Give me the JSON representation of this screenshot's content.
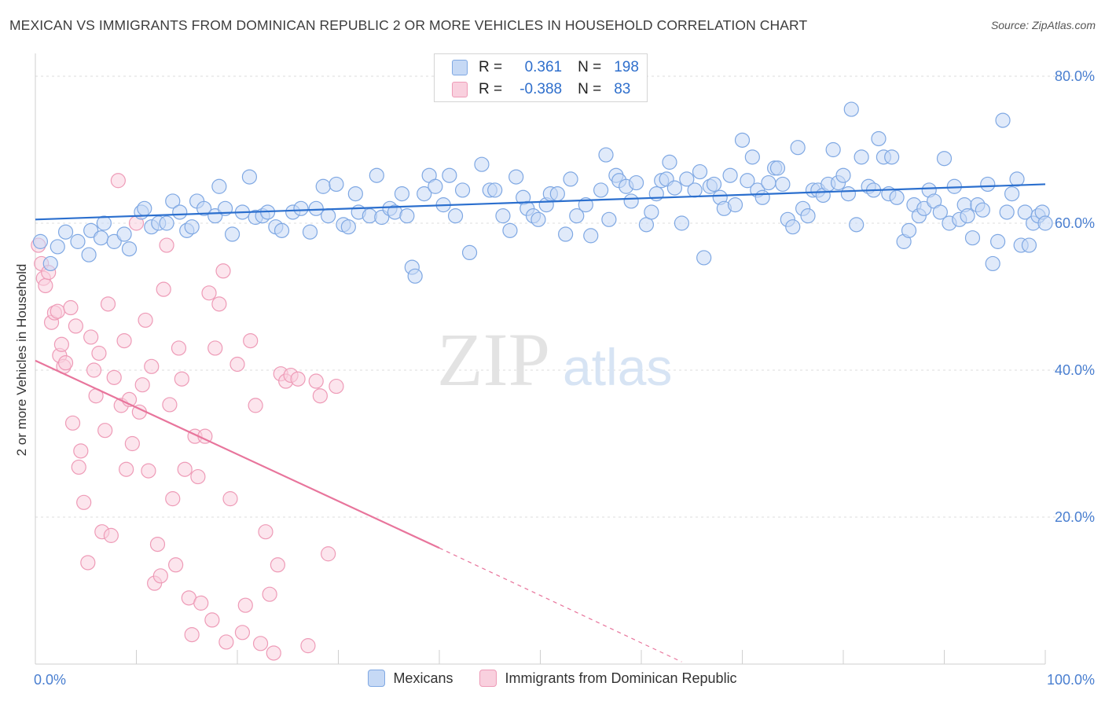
{
  "title": "MEXICAN VS IMMIGRANTS FROM DOMINICAN REPUBLIC 2 OR MORE VEHICLES IN HOUSEHOLD CORRELATION CHART",
  "source": "Source: ZipAtlas.com",
  "watermark": {
    "zip": "ZIP",
    "atlas": "atlas"
  },
  "colors": {
    "blue_fill": "#c6d9f5",
    "blue_stroke": "#7fa8e3",
    "blue_line": "#2b6fce",
    "pink_fill": "#f9d0de",
    "pink_stroke": "#ee9bb7",
    "pink_line": "#e8759c",
    "axis_text": "#4a7fd0",
    "grid": "#dcdcdc"
  },
  "stats": [
    {
      "label_r": "R =",
      "r": "0.361",
      "label_n": "N =",
      "n": "198",
      "color": "blue"
    },
    {
      "label_r": "R =",
      "r": "-0.388",
      "label_n": "N =",
      "n": "83",
      "color": "pink"
    }
  ],
  "legend": [
    {
      "label": "Mexicans",
      "color": "blue"
    },
    {
      "label": "Immigrants from Dominican Republic",
      "color": "pink"
    }
  ],
  "chart_data": {
    "type": "scatter",
    "title": "MEXICAN VS IMMIGRANTS FROM DOMINICAN REPUBLIC 2 OR MORE VEHICLES IN HOUSEHOLD CORRELATION CHART",
    "xlabel": "",
    "ylabel": "2 or more Vehicles in Household",
    "xlim": [
      0,
      100
    ],
    "ylim": [
      0,
      80
    ],
    "x_tick_labels": [
      "0.0%",
      "100.0%"
    ],
    "y_tick_labels": [
      "20.0%",
      "40.0%",
      "60.0%",
      "80.0%"
    ],
    "y_ticks": [
      20,
      40,
      60,
      80
    ],
    "grid": true,
    "legend_position": "bottom",
    "series": [
      {
        "name": "Mexicans",
        "color": "blue",
        "trend": {
          "x": [
            0,
            100
          ],
          "y": [
            60.5,
            65.3
          ]
        },
        "points": [
          [
            0.5,
            57.5
          ],
          [
            1.5,
            54.5
          ],
          [
            2.2,
            56.8
          ],
          [
            3.0,
            58.8
          ],
          [
            4.2,
            57.5
          ],
          [
            5.5,
            59.0
          ],
          [
            5.3,
            55.7
          ],
          [
            6.5,
            58.0
          ],
          [
            6.8,
            60.0
          ],
          [
            7.8,
            57.5
          ],
          [
            8.8,
            58.5
          ],
          [
            9.3,
            56.5
          ],
          [
            10.5,
            61.5
          ],
          [
            10.8,
            62.0
          ],
          [
            11.5,
            59.5
          ],
          [
            12.2,
            60.0
          ],
          [
            13.0,
            60.0
          ],
          [
            13.6,
            63.0
          ],
          [
            14.3,
            61.5
          ],
          [
            15.0,
            59.0
          ],
          [
            15.5,
            59.5
          ],
          [
            16.0,
            63.0
          ],
          [
            16.7,
            62.0
          ],
          [
            17.8,
            61.0
          ],
          [
            18.2,
            65.0
          ],
          [
            18.8,
            62.0
          ],
          [
            19.5,
            58.5
          ],
          [
            20.5,
            61.5
          ],
          [
            21.2,
            66.3
          ],
          [
            21.8,
            60.8
          ],
          [
            22.5,
            61.0
          ],
          [
            23.0,
            61.5
          ],
          [
            23.8,
            59.5
          ],
          [
            24.4,
            59.0
          ],
          [
            25.5,
            61.5
          ],
          [
            26.3,
            62.0
          ],
          [
            27.2,
            58.8
          ],
          [
            27.8,
            62.0
          ],
          [
            28.5,
            65.0
          ],
          [
            29.0,
            61.0
          ],
          [
            29.8,
            65.3
          ],
          [
            30.5,
            59.8
          ],
          [
            31.0,
            59.5
          ],
          [
            31.7,
            64.0
          ],
          [
            32.0,
            61.5
          ],
          [
            33.1,
            61.0
          ],
          [
            33.8,
            66.5
          ],
          [
            34.3,
            60.8
          ],
          [
            35.1,
            62.0
          ],
          [
            35.6,
            61.5
          ],
          [
            36.3,
            64.0
          ],
          [
            36.8,
            61.0
          ],
          [
            37.3,
            54.0
          ],
          [
            37.6,
            52.8
          ],
          [
            38.5,
            64.0
          ],
          [
            39.0,
            66.5
          ],
          [
            39.6,
            65.0
          ],
          [
            40.4,
            62.5
          ],
          [
            41.0,
            66.5
          ],
          [
            41.6,
            61.0
          ],
          [
            42.3,
            64.5
          ],
          [
            43.0,
            56.0
          ],
          [
            44.2,
            68.0
          ],
          [
            45.0,
            64.5
          ],
          [
            45.5,
            64.5
          ],
          [
            46.3,
            61.0
          ],
          [
            47.0,
            59.0
          ],
          [
            47.6,
            66.3
          ],
          [
            48.3,
            63.5
          ],
          [
            48.7,
            62.0
          ],
          [
            49.3,
            61.0
          ],
          [
            49.8,
            60.5
          ],
          [
            50.6,
            62.5
          ],
          [
            51.0,
            64.0
          ],
          [
            51.7,
            64.0
          ],
          [
            52.5,
            58.5
          ],
          [
            53.0,
            66.0
          ],
          [
            53.6,
            61.0
          ],
          [
            54.5,
            62.5
          ],
          [
            55.0,
            58.3
          ],
          [
            56.0,
            64.5
          ],
          [
            56.5,
            69.3
          ],
          [
            56.8,
            60.5
          ],
          [
            57.5,
            66.5
          ],
          [
            57.8,
            65.8
          ],
          [
            58.5,
            65.0
          ],
          [
            59.0,
            63.0
          ],
          [
            59.5,
            65.5
          ],
          [
            60.5,
            59.8
          ],
          [
            61.0,
            61.5
          ],
          [
            61.5,
            64.0
          ],
          [
            62.0,
            65.8
          ],
          [
            62.5,
            66.0
          ],
          [
            62.8,
            68.3
          ],
          [
            63.3,
            64.8
          ],
          [
            64.0,
            60.0
          ],
          [
            64.5,
            66.0
          ],
          [
            65.3,
            64.5
          ],
          [
            65.8,
            67.0
          ],
          [
            66.2,
            55.3
          ],
          [
            66.8,
            65.0
          ],
          [
            67.2,
            65.3
          ],
          [
            67.8,
            63.5
          ],
          [
            68.2,
            62.0
          ],
          [
            68.8,
            66.5
          ],
          [
            69.3,
            62.5
          ],
          [
            70.0,
            71.3
          ],
          [
            70.5,
            65.8
          ],
          [
            71.0,
            69.0
          ],
          [
            71.5,
            64.5
          ],
          [
            72.0,
            63.5
          ],
          [
            72.6,
            65.5
          ],
          [
            73.2,
            67.5
          ],
          [
            73.5,
            67.5
          ],
          [
            74.0,
            65.3
          ],
          [
            74.5,
            60.5
          ],
          [
            75.0,
            59.5
          ],
          [
            75.5,
            70.3
          ],
          [
            76.0,
            62.0
          ],
          [
            76.5,
            61.0
          ],
          [
            77.0,
            64.5
          ],
          [
            77.5,
            64.5
          ],
          [
            78.0,
            63.8
          ],
          [
            78.5,
            65.3
          ],
          [
            79.0,
            70.0
          ],
          [
            79.5,
            65.5
          ],
          [
            80.0,
            66.5
          ],
          [
            80.5,
            64.0
          ],
          [
            80.8,
            75.5
          ],
          [
            81.3,
            59.8
          ],
          [
            81.8,
            69.0
          ],
          [
            82.5,
            65.0
          ],
          [
            83.0,
            64.5
          ],
          [
            83.5,
            71.5
          ],
          [
            84.0,
            69.0
          ],
          [
            84.5,
            64.0
          ],
          [
            84.8,
            69.0
          ],
          [
            85.3,
            63.5
          ],
          [
            86.0,
            57.5
          ],
          [
            86.5,
            59.0
          ],
          [
            87.0,
            62.5
          ],
          [
            87.5,
            61.0
          ],
          [
            88.0,
            62.0
          ],
          [
            88.5,
            64.5
          ],
          [
            89.0,
            63.0
          ],
          [
            89.6,
            61.5
          ],
          [
            90.0,
            68.8
          ],
          [
            90.5,
            60.0
          ],
          [
            91.0,
            65.0
          ],
          [
            91.5,
            60.5
          ],
          [
            92.0,
            62.5
          ],
          [
            92.3,
            61.0
          ],
          [
            92.8,
            58.0
          ],
          [
            93.3,
            62.5
          ],
          [
            93.8,
            61.8
          ],
          [
            94.3,
            65.3
          ],
          [
            94.8,
            54.5
          ],
          [
            95.3,
            57.5
          ],
          [
            95.8,
            74.0
          ],
          [
            96.2,
            61.5
          ],
          [
            96.7,
            64.0
          ],
          [
            97.2,
            66.0
          ],
          [
            97.6,
            57.0
          ],
          [
            98.0,
            61.5
          ],
          [
            98.4,
            57.0
          ],
          [
            98.8,
            60.0
          ],
          [
            99.3,
            61.0
          ],
          [
            99.7,
            61.5
          ],
          [
            100.0,
            60.0
          ]
        ]
      },
      {
        "name": "Immigrants from Dominican Republic",
        "color": "pink",
        "trend": {
          "x": [
            0,
            40
          ],
          "y": [
            41.3,
            15.8
          ]
        },
        "trend_dashed": {
          "x": [
            40,
            64
          ],
          "y": [
            15.8,
            0.3
          ]
        },
        "points": [
          [
            0.3,
            57.0
          ],
          [
            0.6,
            54.5
          ],
          [
            0.8,
            52.5
          ],
          [
            1.0,
            51.5
          ],
          [
            1.3,
            53.3
          ],
          [
            1.6,
            46.5
          ],
          [
            1.9,
            47.8
          ],
          [
            2.2,
            48.0
          ],
          [
            2.4,
            42.0
          ],
          [
            2.6,
            43.5
          ],
          [
            2.8,
            40.5
          ],
          [
            3.0,
            41.0
          ],
          [
            3.5,
            48.5
          ],
          [
            3.7,
            32.8
          ],
          [
            4.0,
            46.0
          ],
          [
            4.3,
            26.8
          ],
          [
            4.5,
            29.0
          ],
          [
            4.8,
            22.0
          ],
          [
            5.2,
            13.8
          ],
          [
            5.5,
            44.5
          ],
          [
            5.8,
            40.0
          ],
          [
            6.0,
            36.5
          ],
          [
            6.3,
            42.3
          ],
          [
            6.6,
            18.0
          ],
          [
            6.9,
            31.8
          ],
          [
            7.2,
            49.0
          ],
          [
            7.5,
            17.5
          ],
          [
            7.8,
            39.0
          ],
          [
            8.2,
            65.8
          ],
          [
            8.5,
            35.2
          ],
          [
            8.8,
            44.0
          ],
          [
            9.0,
            26.5
          ],
          [
            9.3,
            36.0
          ],
          [
            9.6,
            30.0
          ],
          [
            10.0,
            60.0
          ],
          [
            10.3,
            34.3
          ],
          [
            10.6,
            38.0
          ],
          [
            10.9,
            46.8
          ],
          [
            11.2,
            26.3
          ],
          [
            11.5,
            40.5
          ],
          [
            11.8,
            11.0
          ],
          [
            12.1,
            16.3
          ],
          [
            12.4,
            12.0
          ],
          [
            12.7,
            51.0
          ],
          [
            13.0,
            57.0
          ],
          [
            13.3,
            35.3
          ],
          [
            13.6,
            22.5
          ],
          [
            13.9,
            13.5
          ],
          [
            14.2,
            43.0
          ],
          [
            14.5,
            38.8
          ],
          [
            14.8,
            26.5
          ],
          [
            15.2,
            9.0
          ],
          [
            15.5,
            4.0
          ],
          [
            15.8,
            31.0
          ],
          [
            16.1,
            25.5
          ],
          [
            16.4,
            8.3
          ],
          [
            16.8,
            31.0
          ],
          [
            17.2,
            50.5
          ],
          [
            17.5,
            6.0
          ],
          [
            17.8,
            43.0
          ],
          [
            18.2,
            49.0
          ],
          [
            18.6,
            53.5
          ],
          [
            18.9,
            3.0
          ],
          [
            19.3,
            22.5
          ],
          [
            20.0,
            40.8
          ],
          [
            20.5,
            4.3
          ],
          [
            20.8,
            8.0
          ],
          [
            21.3,
            44.0
          ],
          [
            21.8,
            35.2
          ],
          [
            22.3,
            2.8
          ],
          [
            22.8,
            18.0
          ],
          [
            23.2,
            9.5
          ],
          [
            23.6,
            1.5
          ],
          [
            24.0,
            13.5
          ],
          [
            24.3,
            39.5
          ],
          [
            24.8,
            38.5
          ],
          [
            25.3,
            39.3
          ],
          [
            26.0,
            38.8
          ],
          [
            27.0,
            2.5
          ],
          [
            27.8,
            38.5
          ],
          [
            28.2,
            36.5
          ],
          [
            29.0,
            15.0
          ],
          [
            29.8,
            37.8
          ]
        ]
      }
    ]
  }
}
